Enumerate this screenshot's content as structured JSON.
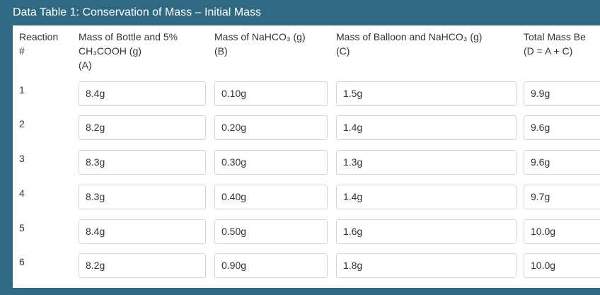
{
  "title": "Data Table 1: Conservation of Mass – Initial Mass",
  "headers": [
    [
      "Reaction",
      "#"
    ],
    [
      "Mass of Bottle and 5%",
      "CH₃COOH (g)",
      "(A)"
    ],
    [
      "Mass of NaHCO₃ (g)",
      "(B)"
    ],
    [
      "Mass of Balloon and NaHCO₃ (g)",
      "(C)"
    ],
    [
      "Total Mass Be",
      "(D = A + C)"
    ]
  ],
  "rows": [
    {
      "num": "1",
      "cells": [
        "8.4g",
        "0.10g",
        "1.5g",
        "9.9g"
      ]
    },
    {
      "num": "2",
      "cells": [
        "8.2g",
        "0.20g",
        "1.4g",
        "9.6g"
      ]
    },
    {
      "num": "3",
      "cells": [
        "8.3g",
        "0.30g",
        "1.3g",
        "9.6g"
      ]
    },
    {
      "num": "4",
      "cells": [
        "8.3g",
        "0.40g",
        "1.4g",
        "9.7g"
      ]
    },
    {
      "num": "5",
      "cells": [
        "8.4g",
        "0.50g",
        "1.6g",
        "10.0g"
      ]
    },
    {
      "num": "6",
      "cells": [
        "8.2g",
        "0.90g",
        "1.8g",
        "10.0g"
      ]
    }
  ]
}
